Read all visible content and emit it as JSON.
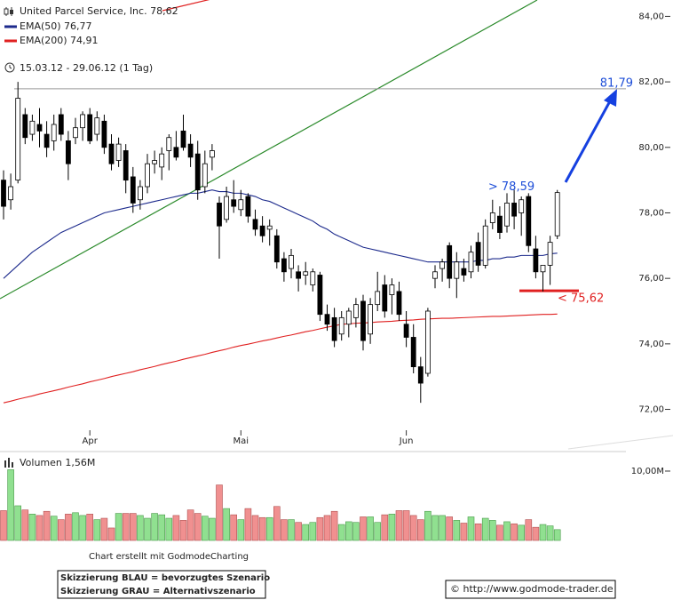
{
  "chart_data": [
    {
      "type": "candlestick",
      "title": "United Parcel Service, Inc. 78,62",
      "subtitle": "15.03.12 - 29.06.12 (1 Tag)",
      "categories": [
        null,
        null,
        null,
        null,
        null,
        null,
        null,
        null,
        null,
        null,
        null,
        null,
        "Apr",
        null,
        null,
        null,
        null,
        null,
        null,
        null,
        null,
        null,
        null,
        null,
        null,
        null,
        null,
        null,
        null,
        null,
        null,
        null,
        null,
        "Mai",
        null,
        null,
        null,
        null,
        null,
        null,
        null,
        null,
        null,
        null,
        null,
        null,
        null,
        null,
        null,
        null,
        null,
        null,
        null,
        null,
        null,
        null,
        "Jun",
        null,
        null,
        null,
        null,
        null,
        null,
        null,
        null,
        null,
        null,
        null,
        null,
        null,
        null,
        null,
        null,
        null,
        null,
        null,
        null,
        null
      ],
      "ohlc": {
        "open": [
          79.0,
          78.4,
          79.0,
          81.0,
          80.4,
          80.7,
          80.4,
          80.2,
          81.0,
          80.2,
          80.3,
          80.6,
          81.0,
          80.4,
          80.8,
          80.1,
          79.6,
          79.9,
          79.1,
          78.4,
          78.8,
          79.5,
          79.4,
          79.9,
          80.0,
          80.5,
          80.1,
          79.8,
          78.8,
          79.7,
          78.3,
          77.8,
          78.4,
          78.1,
          78.5,
          77.8,
          77.6,
          77.5,
          77.3,
          76.6,
          76.3,
          76.2,
          76.1,
          75.8,
          76.1,
          74.9,
          74.8,
          74.3,
          74.6,
          74.8,
          75.3,
          74.3,
          75.2,
          75.8,
          75.5,
          75.6,
          74.6,
          74.2,
          73.3,
          73.1,
          76.0,
          76.3,
          77.0,
          76.0,
          76.3,
          76.2,
          77.1,
          76.4,
          77.7,
          77.9,
          77.6,
          78.3,
          78.0,
          78.5,
          76.9,
          76.2,
          76.4,
          77.3
        ],
        "high": [
          79.3,
          79.2,
          82.0,
          81.2,
          81.0,
          81.2,
          80.8,
          81.0,
          81.2,
          80.5,
          80.9,
          81.1,
          81.2,
          81.1,
          81.0,
          80.4,
          80.3,
          80.1,
          79.4,
          79.0,
          79.8,
          79.9,
          80.0,
          80.4,
          80.5,
          81.0,
          80.4,
          80.2,
          79.9,
          80.1,
          78.5,
          78.8,
          79.0,
          78.7,
          78.6,
          78.1,
          77.9,
          77.8,
          77.5,
          76.8,
          76.9,
          76.4,
          76.5,
          76.3,
          76.2,
          75.2,
          75.1,
          75.0,
          75.1,
          75.4,
          75.5,
          75.4,
          76.2,
          76.1,
          76.0,
          75.9,
          75.0,
          74.6,
          73.6,
          75.1,
          76.4,
          76.6,
          77.1,
          76.8,
          76.6,
          77.0,
          77.4,
          77.8,
          78.4,
          78.2,
          78.6,
          78.7,
          78.5,
          78.6,
          77.3,
          76.4,
          77.3,
          78.7
        ],
        "low": [
          77.8,
          78.1,
          78.9,
          80.1,
          80.2,
          80.0,
          79.7,
          79.9,
          80.2,
          79.0,
          80.1,
          80.2,
          80.1,
          80.2,
          79.8,
          79.3,
          79.4,
          78.6,
          78.0,
          78.1,
          78.6,
          79.2,
          79.0,
          79.3,
          79.6,
          79.9,
          79.4,
          78.4,
          78.6,
          79.3,
          76.6,
          77.7,
          78.0,
          77.9,
          77.7,
          77.3,
          77.1,
          77.0,
          76.3,
          75.9,
          76.0,
          75.6,
          75.8,
          75.6,
          74.7,
          74.4,
          73.9,
          74.1,
          74.2,
          74.5,
          73.8,
          74.0,
          75.0,
          74.8,
          74.9,
          74.7,
          73.9,
          73.1,
          72.2,
          73.0,
          75.7,
          75.9,
          75.7,
          75.4,
          75.9,
          76.0,
          76.2,
          76.3,
          77.5,
          77.2,
          77.4,
          77.5,
          77.3,
          76.8,
          76.0,
          75.6,
          75.8,
          77.2
        ],
        "close": [
          78.2,
          78.8,
          81.5,
          80.3,
          80.8,
          80.5,
          80.0,
          80.7,
          80.4,
          79.5,
          80.6,
          81.0,
          80.2,
          80.9,
          80.0,
          79.5,
          80.1,
          79.0,
          78.3,
          78.8,
          79.5,
          79.6,
          79.8,
          80.3,
          79.7,
          80.0,
          79.7,
          78.7,
          79.5,
          79.9,
          77.6,
          78.5,
          78.2,
          78.4,
          77.9,
          77.5,
          77.3,
          77.6,
          76.5,
          76.2,
          76.7,
          76.0,
          76.2,
          76.2,
          74.9,
          74.6,
          74.1,
          74.8,
          75.0,
          75.2,
          74.1,
          75.2,
          75.6,
          75.0,
          75.8,
          74.9,
          74.2,
          73.3,
          72.8,
          75.0,
          76.2,
          76.5,
          76.0,
          76.5,
          76.1,
          76.8,
          76.4,
          77.6,
          78.0,
          77.4,
          78.3,
          77.9,
          78.4,
          77.0,
          76.2,
          76.4,
          77.1,
          78.62
        ]
      },
      "up_color": "#ffffff",
      "down_color": "#000000",
      "wick_color": "#000000",
      "lines": [
        {
          "name": "EMA(50) 76,77",
          "color": "#1c2a8c",
          "values": [
            76.0,
            76.2,
            76.4,
            76.6,
            76.8,
            76.95,
            77.1,
            77.25,
            77.4,
            77.5,
            77.6,
            77.7,
            77.8,
            77.9,
            78.0,
            78.05,
            78.1,
            78.15,
            78.2,
            78.25,
            78.3,
            78.35,
            78.4,
            78.45,
            78.5,
            78.55,
            78.6,
            78.6,
            78.65,
            78.7,
            78.65,
            78.65,
            78.6,
            78.6,
            78.55,
            78.5,
            78.4,
            78.35,
            78.25,
            78.15,
            78.05,
            77.95,
            77.85,
            77.75,
            77.6,
            77.5,
            77.35,
            77.25,
            77.15,
            77.05,
            76.95,
            76.9,
            76.85,
            76.8,
            76.75,
            76.7,
            76.65,
            76.6,
            76.55,
            76.5,
            76.5,
            76.5,
            76.5,
            76.5,
            76.5,
            76.5,
            76.55,
            76.55,
            76.6,
            76.6,
            76.65,
            76.65,
            76.7,
            76.7,
            76.7,
            76.7,
            76.75,
            76.77
          ]
        },
        {
          "name": "EMA(200) 74,91",
          "color": "#e02020",
          "values": [
            72.2,
            72.25,
            72.31,
            72.36,
            72.41,
            72.47,
            72.52,
            72.57,
            72.62,
            72.68,
            72.73,
            72.78,
            72.84,
            72.89,
            72.94,
            73.0,
            73.05,
            73.1,
            73.15,
            73.21,
            73.26,
            73.31,
            73.37,
            73.42,
            73.47,
            73.53,
            73.58,
            73.63,
            73.68,
            73.74,
            73.79,
            73.84,
            73.9,
            73.95,
            73.99,
            74.04,
            74.09,
            74.13,
            74.18,
            74.23,
            74.27,
            74.32,
            74.37,
            74.41,
            74.46,
            74.51,
            74.55,
            74.6,
            74.61,
            74.63,
            74.64,
            74.65,
            74.67,
            74.68,
            74.69,
            74.71,
            74.72,
            74.73,
            74.75,
            74.76,
            74.77,
            74.78,
            74.78,
            74.79,
            74.8,
            74.81,
            74.82,
            74.83,
            74.84,
            74.84,
            74.85,
            74.86,
            74.87,
            74.88,
            74.89,
            74.9,
            74.9,
            74.91
          ]
        }
      ],
      "annotations": [
        {
          "text": "81,79",
          "value": 81.79,
          "color": "#1f4fd8",
          "line_color": "#999999"
        },
        {
          "text": "> 78,59",
          "value": 78.59,
          "color": "#1f4fd8"
        },
        {
          "text": "< 75,62",
          "value": 75.62,
          "color": "#e02020",
          "line_color": "#e02020"
        }
      ],
      "ylim": [
        71.2,
        84.5
      ],
      "yticks": [
        {
          "value": 72,
          "label": "72,00"
        },
        {
          "value": 74,
          "label": "74,00"
        },
        {
          "value": 76,
          "label": "76,00"
        },
        {
          "value": 78,
          "label": "78,00"
        },
        {
          "value": 80,
          "label": "80,00"
        },
        {
          "value": 82,
          "label": "82,00"
        },
        {
          "value": 84,
          "label": "84,00"
        }
      ],
      "grid": false
    },
    {
      "type": "bar",
      "title": "Volumen 1,56M",
      "values": [
        4.3,
        10.2,
        5.0,
        4.4,
        3.8,
        3.6,
        4.2,
        3.5,
        3.0,
        3.8,
        4.0,
        3.6,
        3.8,
        3.0,
        3.2,
        1.8,
        3.9,
        3.9,
        3.9,
        3.6,
        3.2,
        3.9,
        3.7,
        3.2,
        3.6,
        2.9,
        4.4,
        3.9,
        3.5,
        3.2,
        8.0,
        4.6,
        3.7,
        3.0,
        4.6,
        3.6,
        3.3,
        3.3,
        4.9,
        3.0,
        3.0,
        2.6,
        2.3,
        2.6,
        3.3,
        3.6,
        4.2,
        2.3,
        2.7,
        2.6,
        3.4,
        3.4,
        2.6,
        3.7,
        3.8,
        4.3,
        4.3,
        3.6,
        3.0,
        4.2,
        3.6,
        3.6,
        3.4,
        2.9,
        2.5,
        3.4,
        2.4,
        3.2,
        2.9,
        2.2,
        2.7,
        2.4,
        2.2,
        3.0,
        1.9,
        2.3,
        2.1,
        1.56
      ],
      "up_color": "#90e090",
      "down_color": "#f09090",
      "ylim": [
        0,
        11.92
      ],
      "yticks": [
        {
          "value": 10,
          "label": "10,00M"
        }
      ]
    }
  ],
  "footer": {
    "credit": "Chart erstellt mit GodmodeCharting",
    "legend": [
      "Skizzierung BLAU = bevorzugtes Szenario",
      "Skizzierung GRAU = Alternativszenario"
    ],
    "copyright": "© http://www.godmode-trader.de"
  }
}
